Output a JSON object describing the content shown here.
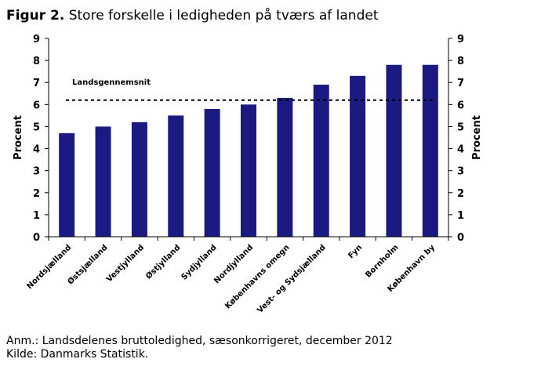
{
  "title": {
    "prefix": "Figur 2.",
    "text": "Store forskelle i ledigheden på tværs af landet"
  },
  "notes": {
    "anm": "Anm.: Landsdelenes bruttoledighed, sæsonkorrigeret, december 2012",
    "kilde": "Kilde: Danmarks Statistik."
  },
  "chart_data": {
    "type": "bar",
    "categories": [
      "Nordsjælland",
      "Østsjælland",
      "Vestjylland",
      "Østjylland",
      "Sydjylland",
      "Nordjylland",
      "Københavns omegn",
      "Vest- og Sydsjælland",
      "Fyn",
      "Bornholm",
      "København by"
    ],
    "values": [
      4.7,
      5.0,
      5.2,
      5.5,
      5.8,
      6.0,
      6.3,
      6.9,
      7.3,
      7.8,
      7.8
    ],
    "ylabel": "Procent",
    "ylabel_right": "Procent",
    "ylim": [
      0,
      9
    ],
    "yticks": [
      "0",
      "1",
      "2",
      "3",
      "4",
      "5",
      "6",
      "7",
      "8",
      "9"
    ],
    "reference_line": {
      "label": "Landsgennemsnit",
      "value": 6.2,
      "style": "dashed"
    },
    "bar_color": "#1a1a80",
    "grid": false
  }
}
